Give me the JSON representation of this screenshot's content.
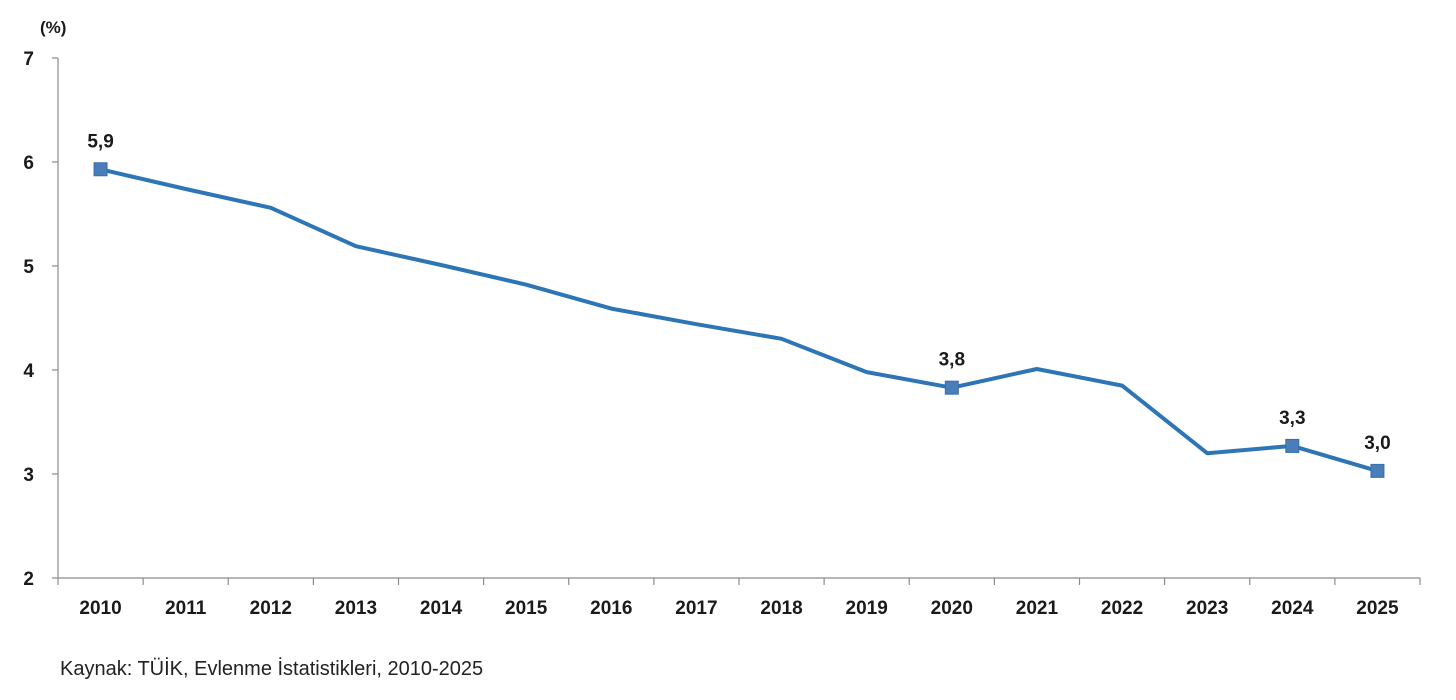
{
  "chart_data": {
    "type": "line",
    "title": "",
    "xlabel": "",
    "ylabel": "(%)",
    "categories": [
      "2010",
      "2011",
      "2012",
      "2013",
      "2014",
      "2015",
      "2016",
      "2017",
      "2018",
      "2019",
      "2020",
      "2021",
      "2022",
      "2023",
      "2024",
      "2025"
    ],
    "series": [
      {
        "values": [
          5.93,
          5.74,
          5.56,
          5.19,
          5.01,
          4.82,
          4.59,
          4.44,
          4.3,
          3.98,
          3.83,
          4.01,
          3.85,
          3.2,
          3.27,
          3.03
        ],
        "color": "#2e75b6",
        "marker_color": "#4a7ebb"
      }
    ],
    "marked_points": [
      {
        "category": "2010",
        "label": "5,9"
      },
      {
        "category": "2020",
        "label": "3,8"
      },
      {
        "category": "2024",
        "label": "3,3"
      },
      {
        "category": "2025",
        "label": "3,0"
      }
    ],
    "y_ticks": [
      2,
      3,
      4,
      5,
      6,
      7
    ],
    "ylim": [
      2,
      7
    ],
    "grid": false,
    "legend": "none"
  },
  "source": "Kaynak: TÜİK, Evlenme İstatistikleri, 2010-2025"
}
